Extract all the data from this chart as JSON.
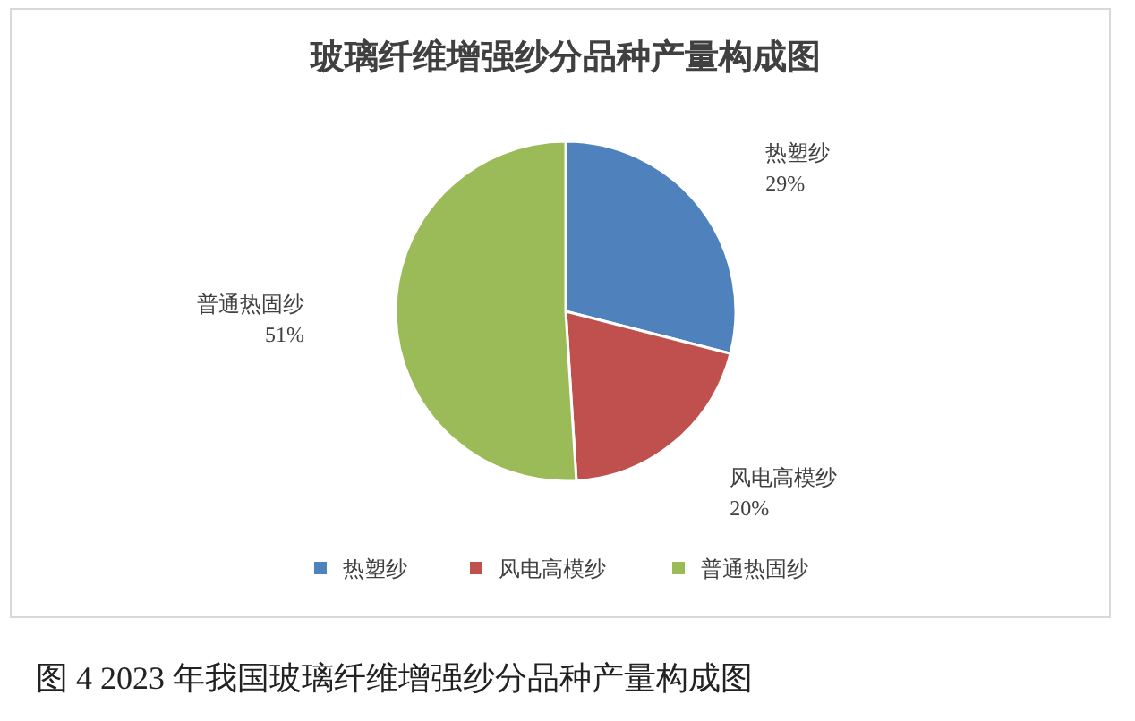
{
  "chart_data": {
    "type": "pie",
    "title": "玻璃纤维增强纱分品种产量构成图",
    "categories": [
      "热塑纱",
      "风电高模纱",
      "普通热固纱"
    ],
    "values": [
      29,
      20,
      51
    ],
    "colors": [
      "#4f81bd",
      "#c0504d",
      "#9bbb59"
    ],
    "value_labels": [
      "29%",
      "20%",
      "51%"
    ],
    "legend": "bottom",
    "annotations": [
      "图 4 2023 年我国玻璃纤维增强纱分品种产量构成图"
    ]
  }
}
